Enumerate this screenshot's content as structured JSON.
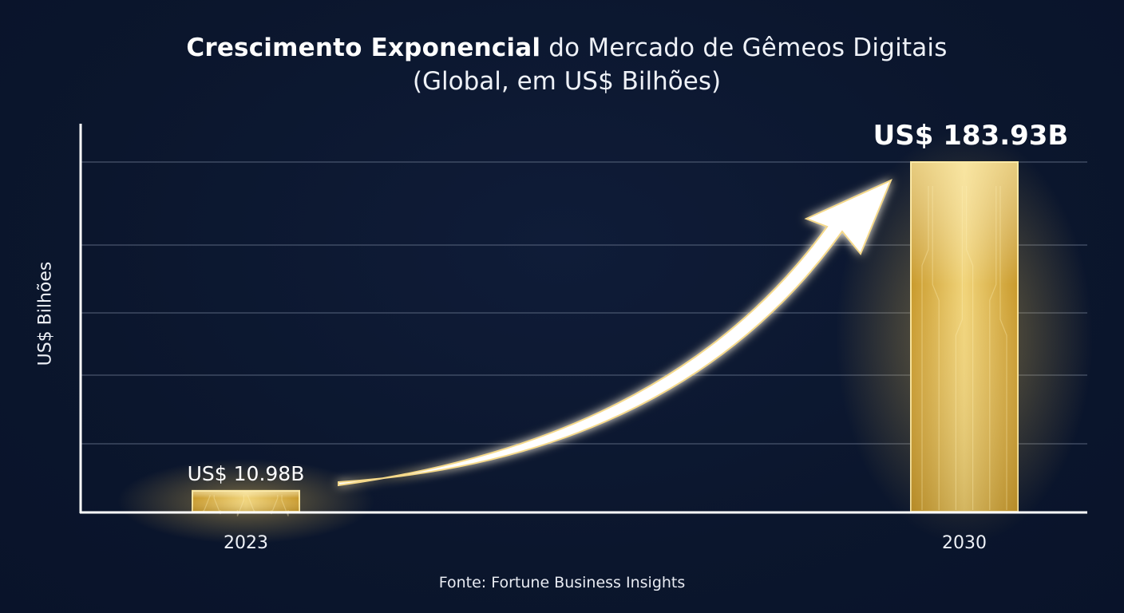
{
  "chart_data": {
    "type": "bar",
    "title_bold": "Crescimento Exponencial",
    "title_rest": "do Mercado de Gêmeos Digitais",
    "subtitle": "(Global, em US$ Bilhões)",
    "ylabel": "US$ Bilhões",
    "categories": [
      "2023",
      "2030"
    ],
    "values": [
      10.98,
      183.93
    ],
    "value_labels": [
      "US$ 10.98B",
      "US$ 183.93B"
    ],
    "ylim": [
      0,
      183.93
    ],
    "grid": true,
    "source": "Fonte: Fortune Business Insights",
    "colors": {
      "background": "#0b162d",
      "bar": "#e2b23a",
      "bar_highlight": "#f6de8a",
      "grid": "#6c7890",
      "arrow": "#ffffff"
    }
  }
}
